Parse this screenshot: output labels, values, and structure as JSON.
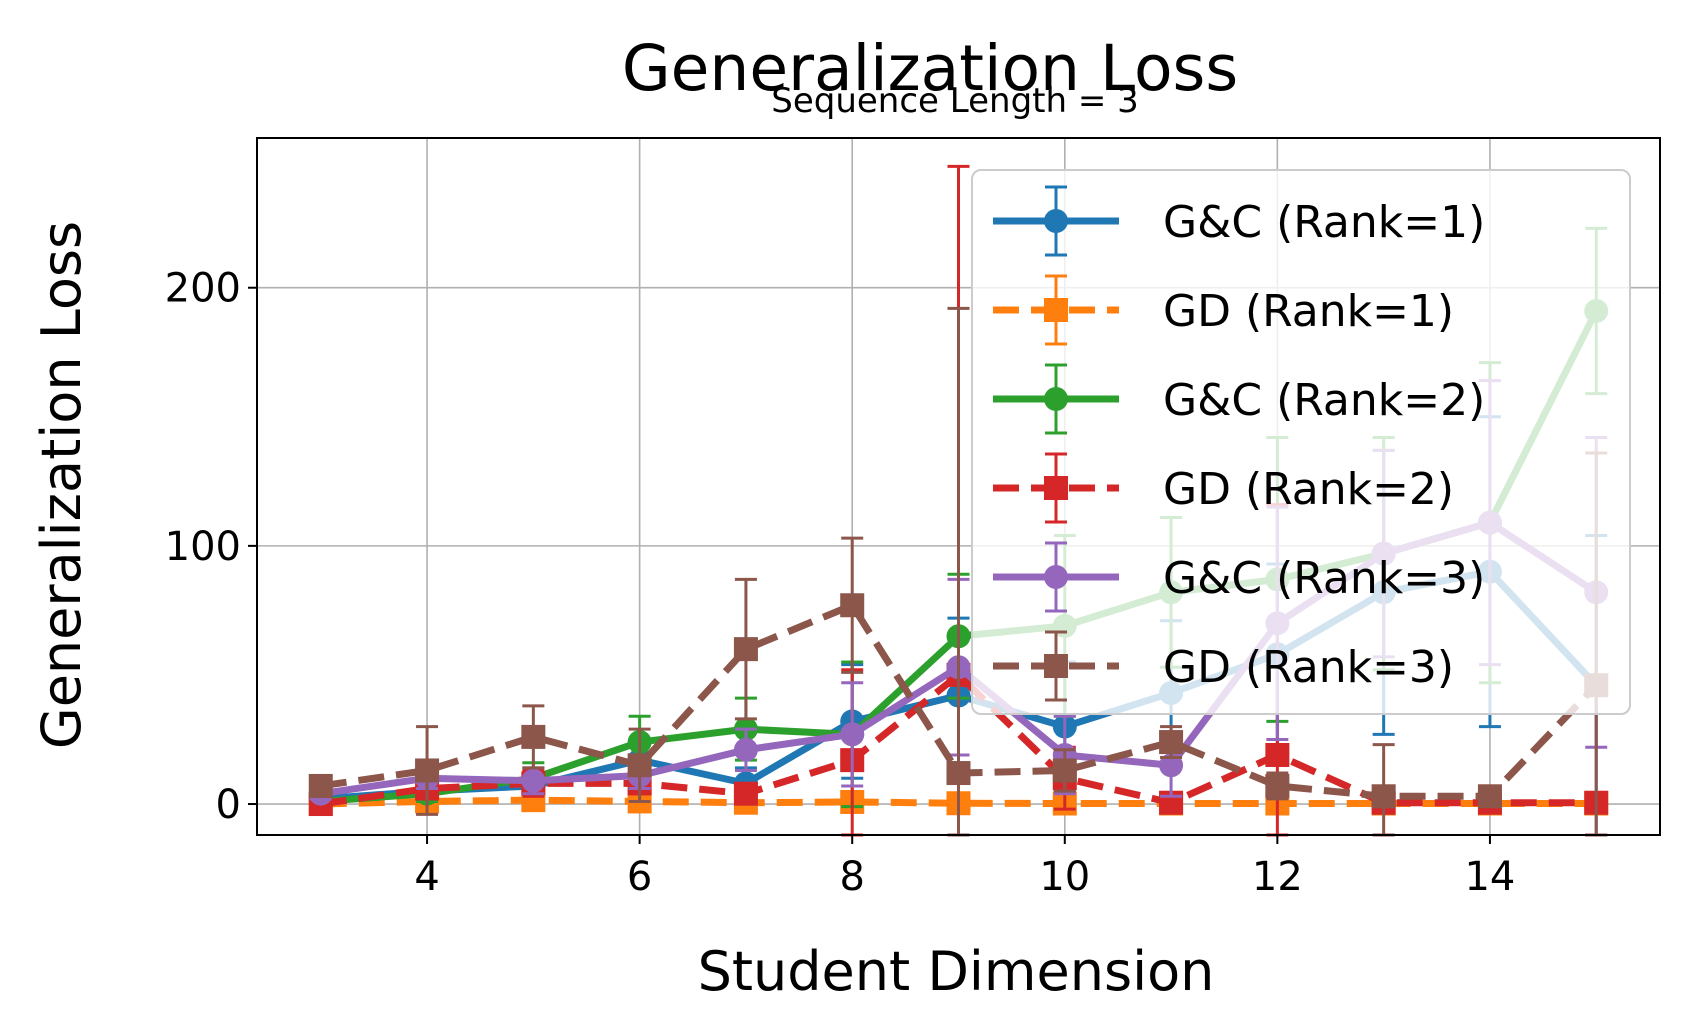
{
  "chart_data": {
    "type": "line",
    "title": "Generalization Loss",
    "subtitle": "Sequence Length = 3",
    "xlabel": "Student Dimension",
    "ylabel": "Generalization Loss",
    "xlim": [
      2.4,
      15.6
    ],
    "ylim": [
      -12,
      258
    ],
    "xticks": [
      4,
      6,
      8,
      10,
      12,
      14
    ],
    "yticks": [
      0,
      100,
      200
    ],
    "grid": true,
    "legend_position": "top-right",
    "x": [
      3,
      4,
      5,
      6,
      7,
      8,
      9,
      10,
      11,
      12,
      13,
      14,
      15
    ],
    "series": [
      {
        "name": "G&C (Rank=1)",
        "color": "#1f77b4",
        "dashed": false,
        "marker": "circle",
        "values": [
          2,
          5,
          7,
          17,
          8,
          32,
          42,
          30,
          43,
          58,
          82,
          90,
          46
        ],
        "errors": [
          2,
          3,
          4,
          8,
          6,
          22,
          30,
          25,
          28,
          35,
          55,
          60,
          58
        ]
      },
      {
        "name": "GD (Rank=1)",
        "color": "#ff7f0e",
        "dashed": true,
        "marker": "square",
        "values": [
          0,
          1,
          1.5,
          1,
          0.5,
          0.8,
          0.3,
          0.2,
          0.2,
          0.2,
          0.2,
          0.2,
          0.2
        ],
        "errors": [
          0.5,
          0.7,
          1,
          0.8,
          0.5,
          0.6,
          0.3,
          0.2,
          0.2,
          0.2,
          0.2,
          0.2,
          0.2
        ]
      },
      {
        "name": "G&C (Rank=2)",
        "color": "#2ca02c",
        "dashed": false,
        "marker": "circle",
        "values": [
          1,
          4,
          10,
          24,
          29,
          27,
          65,
          69,
          82,
          87,
          97,
          109,
          191
        ],
        "errors": [
          2,
          3,
          6,
          10,
          12,
          28,
          24,
          35,
          29,
          55,
          45,
          62,
          32
        ]
      },
      {
        "name": "GD (Rank=2)",
        "color": "#d62728",
        "dashed": true,
        "marker": "square",
        "values": [
          0,
          6,
          8,
          8,
          4,
          17,
          50,
          10,
          0.5,
          19,
          0.5,
          0.5,
          0.5
        ],
        "errors": [
          0.5,
          4,
          5,
          4,
          3,
          35,
          197,
          12,
          1,
          97,
          1,
          1,
          1
        ]
      },
      {
        "name": "G&C (Rank=3)",
        "color": "#9467bd",
        "dashed": false,
        "marker": "circle",
        "values": [
          4,
          10,
          9,
          11,
          21,
          27,
          53,
          19,
          15,
          70,
          97,
          109,
          82
        ],
        "errors": [
          2,
          4,
          5,
          5,
          8,
          20,
          34,
          15,
          12,
          45,
          40,
          55,
          60
        ]
      },
      {
        "name": "GD (Rank=3)",
        "color": "#8c564b",
        "dashed": true,
        "marker": "square",
        "values": [
          7,
          13,
          26,
          15,
          60,
          77,
          12,
          13,
          24,
          7,
          3,
          3,
          46
        ],
        "errors": [
          3,
          17,
          12,
          14,
          27,
          26,
          180,
          8,
          6,
          5,
          20,
          3,
          90
        ]
      }
    ]
  }
}
